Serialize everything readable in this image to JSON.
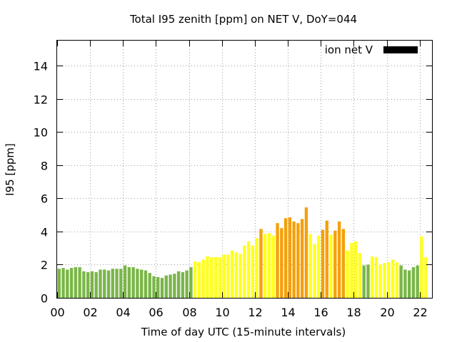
{
  "chart_data": {
    "type": "bar",
    "title": "Total I95 zenith [ppm] on NET V, DoY=044",
    "xlabel": "Time of day UTC (15-minute intervals)",
    "ylabel": "I95 [ppm]",
    "xlim": [
      0,
      22.75
    ],
    "ylim": [
      0,
      15.5
    ],
    "grid": true,
    "legend_position": "top-right",
    "legend": [
      {
        "name": "ion net V",
        "color": "#000000"
      }
    ],
    "x_ticks": [
      "00",
      "02",
      "04",
      "06",
      "08",
      "10",
      "12",
      "14",
      "16",
      "18",
      "20",
      "22"
    ],
    "y_ticks": [
      "0",
      "2",
      "4",
      "6",
      "8",
      "10",
      "12",
      "14"
    ],
    "bar_width_hours": 0.25,
    "category_colors": {
      "green": "#7ab648",
      "yellow": "#ffff1e",
      "orange": "#f5a00a"
    },
    "bars": [
      {
        "t": 0.0,
        "v": 1.75,
        "c": "green"
      },
      {
        "t": 0.25,
        "v": 1.8,
        "c": "green"
      },
      {
        "t": 0.5,
        "v": 1.7,
        "c": "green"
      },
      {
        "t": 0.75,
        "v": 1.8,
        "c": "green"
      },
      {
        "t": 1.0,
        "v": 1.85,
        "c": "green"
      },
      {
        "t": 1.25,
        "v": 1.85,
        "c": "green"
      },
      {
        "t": 1.5,
        "v": 1.6,
        "c": "green"
      },
      {
        "t": 1.75,
        "v": 1.55,
        "c": "green"
      },
      {
        "t": 2.0,
        "v": 1.6,
        "c": "green"
      },
      {
        "t": 2.25,
        "v": 1.55,
        "c": "green"
      },
      {
        "t": 2.5,
        "v": 1.7,
        "c": "green"
      },
      {
        "t": 2.75,
        "v": 1.7,
        "c": "green"
      },
      {
        "t": 3.0,
        "v": 1.65,
        "c": "green"
      },
      {
        "t": 3.25,
        "v": 1.75,
        "c": "green"
      },
      {
        "t": 3.5,
        "v": 1.75,
        "c": "green"
      },
      {
        "t": 3.75,
        "v": 1.75,
        "c": "green"
      },
      {
        "t": 4.0,
        "v": 1.95,
        "c": "green"
      },
      {
        "t": 4.25,
        "v": 1.85,
        "c": "green"
      },
      {
        "t": 4.5,
        "v": 1.85,
        "c": "green"
      },
      {
        "t": 4.75,
        "v": 1.75,
        "c": "green"
      },
      {
        "t": 5.0,
        "v": 1.7,
        "c": "green"
      },
      {
        "t": 5.25,
        "v": 1.65,
        "c": "green"
      },
      {
        "t": 5.5,
        "v": 1.5,
        "c": "green"
      },
      {
        "t": 5.75,
        "v": 1.3,
        "c": "green"
      },
      {
        "t": 6.0,
        "v": 1.25,
        "c": "green"
      },
      {
        "t": 6.25,
        "v": 1.2,
        "c": "green"
      },
      {
        "t": 6.5,
        "v": 1.35,
        "c": "green"
      },
      {
        "t": 6.75,
        "v": 1.4,
        "c": "green"
      },
      {
        "t": 7.0,
        "v": 1.45,
        "c": "green"
      },
      {
        "t": 7.25,
        "v": 1.6,
        "c": "green"
      },
      {
        "t": 7.5,
        "v": 1.55,
        "c": "green"
      },
      {
        "t": 7.75,
        "v": 1.65,
        "c": "green"
      },
      {
        "t": 8.0,
        "v": 1.85,
        "c": "green"
      },
      {
        "t": 8.25,
        "v": 2.2,
        "c": "yellow"
      },
      {
        "t": 8.5,
        "v": 2.15,
        "c": "yellow"
      },
      {
        "t": 8.75,
        "v": 2.3,
        "c": "yellow"
      },
      {
        "t": 9.0,
        "v": 2.5,
        "c": "yellow"
      },
      {
        "t": 9.25,
        "v": 2.45,
        "c": "yellow"
      },
      {
        "t": 9.5,
        "v": 2.45,
        "c": "yellow"
      },
      {
        "t": 9.75,
        "v": 2.45,
        "c": "yellow"
      },
      {
        "t": 10.0,
        "v": 2.6,
        "c": "yellow"
      },
      {
        "t": 10.25,
        "v": 2.6,
        "c": "yellow"
      },
      {
        "t": 10.5,
        "v": 2.85,
        "c": "yellow"
      },
      {
        "t": 10.75,
        "v": 2.75,
        "c": "yellow"
      },
      {
        "t": 11.0,
        "v": 2.65,
        "c": "yellow"
      },
      {
        "t": 11.25,
        "v": 3.15,
        "c": "yellow"
      },
      {
        "t": 11.5,
        "v": 3.4,
        "c": "yellow"
      },
      {
        "t": 11.75,
        "v": 3.15,
        "c": "yellow"
      },
      {
        "t": 12.0,
        "v": 3.6,
        "c": "yellow"
      },
      {
        "t": 12.25,
        "v": 4.15,
        "c": "orange"
      },
      {
        "t": 12.5,
        "v": 3.85,
        "c": "yellow"
      },
      {
        "t": 12.75,
        "v": 3.9,
        "c": "yellow"
      },
      {
        "t": 13.0,
        "v": 3.75,
        "c": "yellow"
      },
      {
        "t": 13.25,
        "v": 4.5,
        "c": "orange"
      },
      {
        "t": 13.5,
        "v": 4.2,
        "c": "orange"
      },
      {
        "t": 13.75,
        "v": 4.8,
        "c": "orange"
      },
      {
        "t": 14.0,
        "v": 4.85,
        "c": "orange"
      },
      {
        "t": 14.25,
        "v": 4.6,
        "c": "orange"
      },
      {
        "t": 14.5,
        "v": 4.5,
        "c": "orange"
      },
      {
        "t": 14.75,
        "v": 4.75,
        "c": "orange"
      },
      {
        "t": 15.0,
        "v": 5.45,
        "c": "orange"
      },
      {
        "t": 15.25,
        "v": 3.85,
        "c": "yellow"
      },
      {
        "t": 15.5,
        "v": 3.25,
        "c": "yellow"
      },
      {
        "t": 15.75,
        "v": 3.75,
        "c": "yellow"
      },
      {
        "t": 16.0,
        "v": 4.1,
        "c": "orange"
      },
      {
        "t": 16.25,
        "v": 4.65,
        "c": "orange"
      },
      {
        "t": 16.5,
        "v": 3.8,
        "c": "yellow"
      },
      {
        "t": 16.75,
        "v": 4.05,
        "c": "orange"
      },
      {
        "t": 17.0,
        "v": 4.6,
        "c": "orange"
      },
      {
        "t": 17.25,
        "v": 4.15,
        "c": "orange"
      },
      {
        "t": 17.5,
        "v": 2.85,
        "c": "yellow"
      },
      {
        "t": 17.75,
        "v": 3.3,
        "c": "yellow"
      },
      {
        "t": 18.0,
        "v": 3.4,
        "c": "yellow"
      },
      {
        "t": 18.25,
        "v": 2.7,
        "c": "yellow"
      },
      {
        "t": 18.5,
        "v": 1.95,
        "c": "green"
      },
      {
        "t": 18.75,
        "v": 2.0,
        "c": "green"
      },
      {
        "t": 19.0,
        "v": 2.5,
        "c": "yellow"
      },
      {
        "t": 19.25,
        "v": 2.45,
        "c": "yellow"
      },
      {
        "t": 19.5,
        "v": 2.0,
        "c": "yellow"
      },
      {
        "t": 19.75,
        "v": 2.1,
        "c": "yellow"
      },
      {
        "t": 20.0,
        "v": 2.15,
        "c": "yellow"
      },
      {
        "t": 20.25,
        "v": 2.3,
        "c": "yellow"
      },
      {
        "t": 20.5,
        "v": 2.15,
        "c": "yellow"
      },
      {
        "t": 20.75,
        "v": 1.95,
        "c": "green"
      },
      {
        "t": 21.0,
        "v": 1.7,
        "c": "green"
      },
      {
        "t": 21.25,
        "v": 1.65,
        "c": "green"
      },
      {
        "t": 21.5,
        "v": 1.85,
        "c": "green"
      },
      {
        "t": 21.75,
        "v": 1.95,
        "c": "green"
      },
      {
        "t": 22.0,
        "v": 3.7,
        "c": "yellow"
      },
      {
        "t": 22.25,
        "v": 2.45,
        "c": "yellow"
      }
    ]
  }
}
